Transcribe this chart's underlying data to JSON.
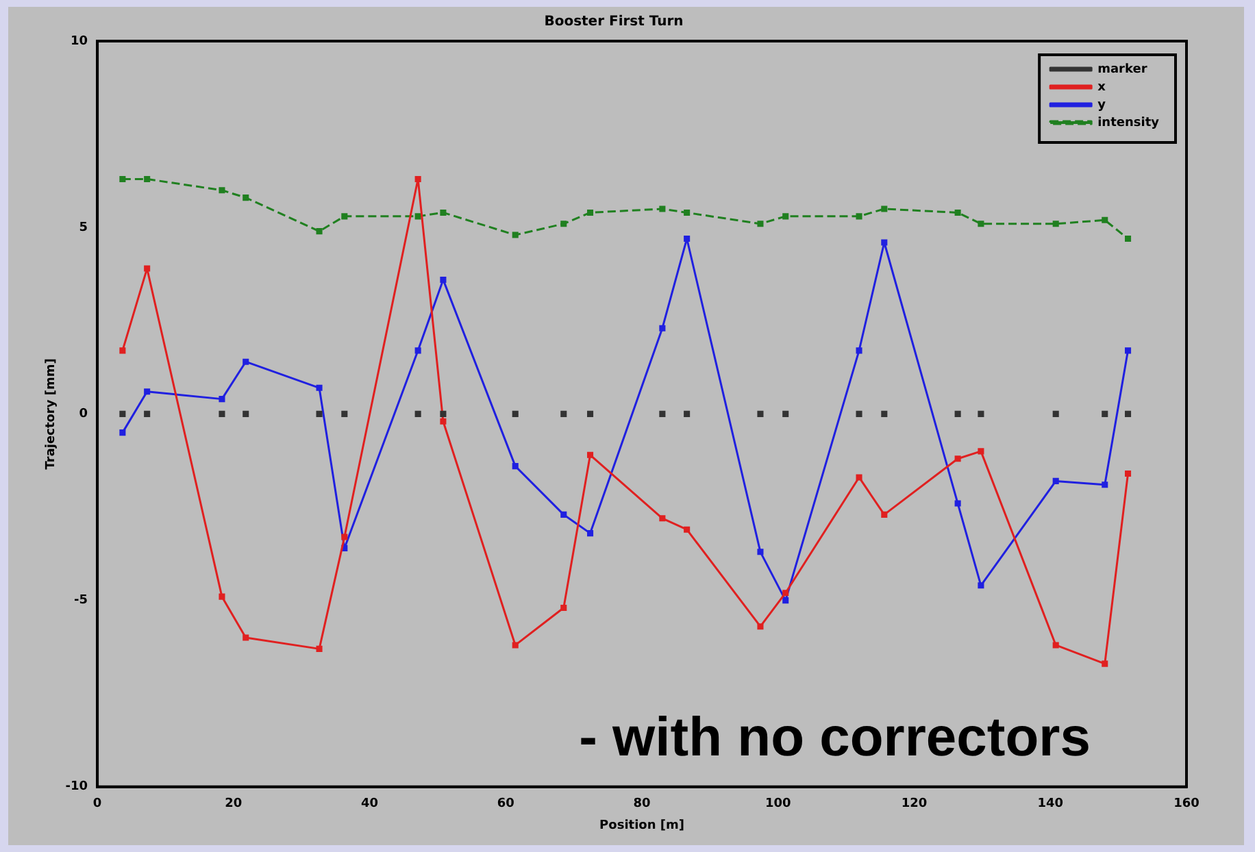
{
  "chart_data": {
    "type": "line",
    "title": "Booster First Turn",
    "xlabel": "Position [m]",
    "ylabel": "Trajectory [mm]",
    "x": [
      3.7,
      7.3,
      18.3,
      21.8,
      32.6,
      36.3,
      47.1,
      50.8,
      61.4,
      68.5,
      72.4,
      83.0,
      86.6,
      97.4,
      101.1,
      111.9,
      115.6,
      126.4,
      129.8,
      140.8,
      148.0,
      151.4
    ],
    "series": [
      {
        "name": "marker",
        "type": "scatter",
        "color": "#333333",
        "values": [
          0,
          0,
          0,
          0,
          0,
          0,
          0,
          0,
          0,
          0,
          0,
          0,
          0,
          0,
          0,
          0,
          0,
          0,
          0,
          0,
          0,
          0
        ]
      },
      {
        "name": "x",
        "color": "#e02020",
        "line_style": "solid",
        "values": [
          1.7,
          3.9,
          -4.9,
          -6.0,
          -6.3,
          -3.3,
          6.3,
          -0.2,
          -6.2,
          -5.2,
          -1.1,
          -2.8,
          -3.1,
          -5.7,
          -4.8,
          -1.7,
          -2.7,
          -1.2,
          -1.0,
          -6.2,
          -6.7,
          -1.6
        ]
      },
      {
        "name": "y",
        "color": "#2020e0",
        "line_style": "solid",
        "values": [
          -0.5,
          0.6,
          0.4,
          1.4,
          0.7,
          -3.6,
          1.7,
          3.6,
          -1.4,
          -2.7,
          -3.2,
          2.3,
          4.7,
          -3.7,
          -5.0,
          1.7,
          4.6,
          -2.4,
          -4.6,
          -1.8,
          -1.9,
          1.7
        ]
      },
      {
        "name": "intensity",
        "color": "#208020",
        "line_style": "dashed",
        "values": [
          6.3,
          6.3,
          6.0,
          5.8,
          4.9,
          5.3,
          5.3,
          5.4,
          4.8,
          5.1,
          5.4,
          5.5,
          5.4,
          5.1,
          5.3,
          5.3,
          5.5,
          5.4,
          5.1,
          5.1,
          5.2,
          4.7
        ]
      }
    ],
    "xlim": [
      0,
      160
    ],
    "xticks": [
      0,
      20,
      40,
      60,
      80,
      100,
      120,
      140,
      160
    ],
    "ylim": [
      -10,
      10
    ],
    "yticks": [
      -10,
      -5,
      0,
      5,
      10
    ],
    "grid": false,
    "legend": "top right",
    "marker": "square",
    "annotations": [
      "- with no correctors"
    ]
  }
}
